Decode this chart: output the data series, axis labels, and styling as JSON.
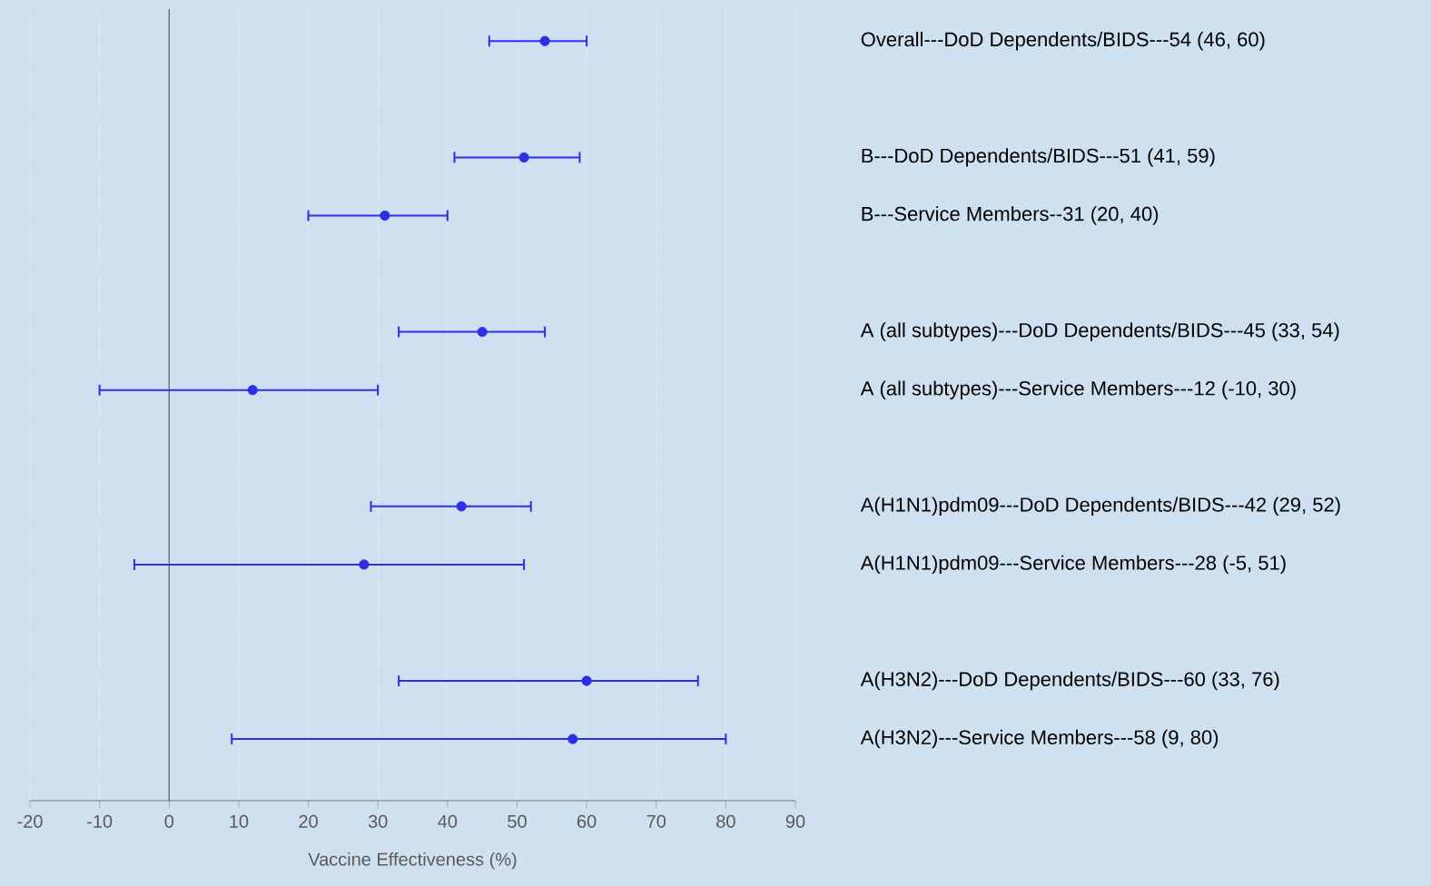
{
  "chart_data": {
    "type": "scatter",
    "orientation": "horizontal",
    "xlabel": "Vaccine Effectiveness (%)",
    "categories": [
      "Overall---DoD Dependents/BIDS---54 (46, 60)",
      null,
      "B---DoD Dependents/BIDS---51 (41, 59)",
      "B---Service Members--31 (20, 40)",
      null,
      "A (all subtypes)---DoD Dependents/BIDS---45 (33, 54)",
      "A (all subtypes)---Service Members---12 (-10, 30)",
      null,
      "A(H1N1)pdm09---DoD Dependents/BIDS---42 (29, 52)",
      "A(H1N1)pdm09---Service Members---28 (-5, 51)",
      null,
      "A(H3N2)---DoD Dependents/BIDS---60 (33, 76)",
      "A(H3N2)---Service Members---58 (9, 80)"
    ],
    "values": [
      54,
      null,
      51,
      31,
      null,
      45,
      12,
      null,
      42,
      28,
      null,
      60,
      58
    ],
    "errors": [
      [
        46,
        60
      ],
      null,
      [
        41,
        59
      ],
      [
        20,
        40
      ],
      null,
      [
        33,
        54
      ],
      [
        -10,
        30
      ],
      null,
      [
        29,
        52
      ],
      [
        -5,
        51
      ],
      null,
      [
        33,
        76
      ],
      [
        9,
        80
      ]
    ],
    "color": "#2e2ee6",
    "xlim": [
      -20,
      90
    ],
    "xticks": [
      -20,
      -10,
      0,
      10,
      20,
      30,
      40,
      50,
      60,
      70,
      80,
      90
    ],
    "grid": "x",
    "ref_lines": [
      {
        "axis": "x",
        "value": 0,
        "color": "#595959"
      }
    ]
  }
}
